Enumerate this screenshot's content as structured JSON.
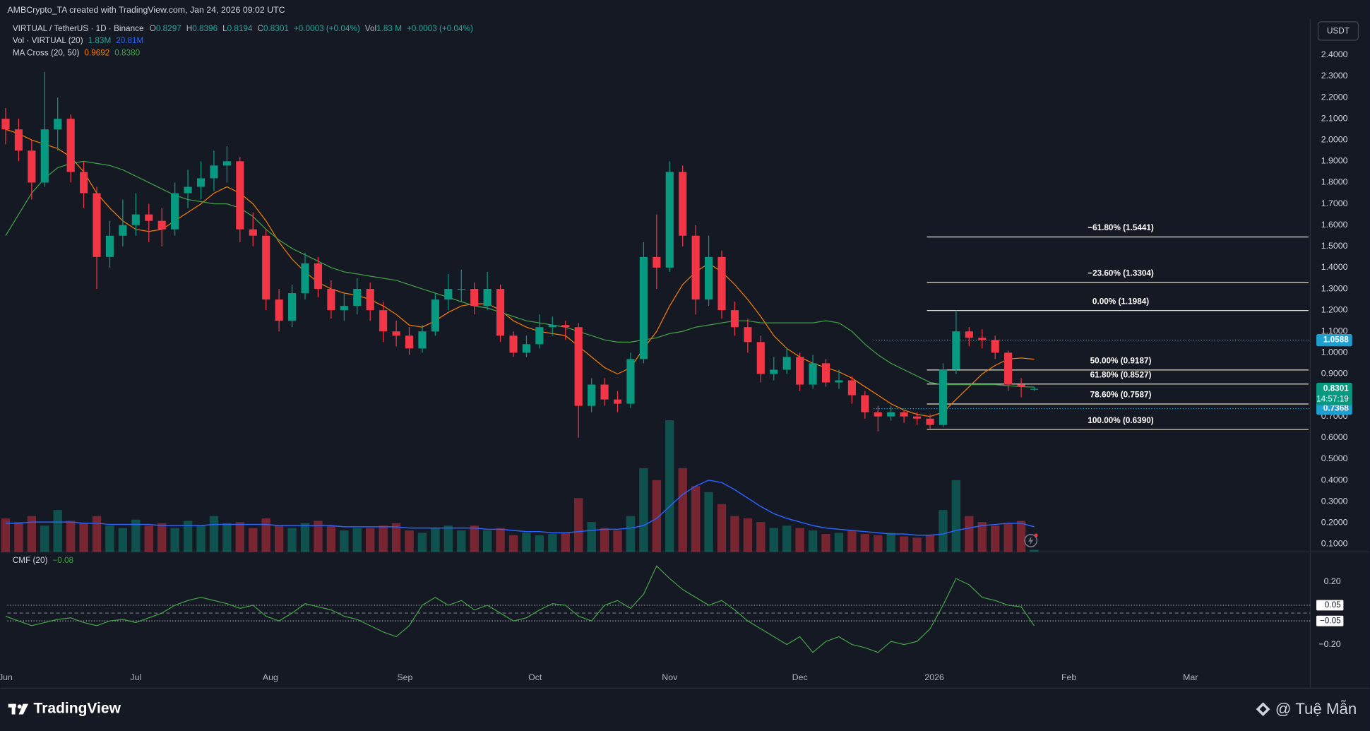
{
  "header": {
    "attribution": "AMBCrypto_TA created with TradingView.com, Jan 24, 2026 09:02 UTC",
    "currency_button": "USDT"
  },
  "legend": {
    "symbol": "VIRTUAL / TetherUS · 1D · Binance",
    "open_label": "O",
    "open": "0.8297",
    "high_label": "H",
    "high": "0.8396",
    "low_label": "L",
    "low": "0.8194",
    "close_label": "C",
    "close": "0.8301",
    "change": "+0.0003 (+0.04%)",
    "vol_label": "Vol",
    "vol": "1.83 M",
    "vol_change": "+0.0003 (+0.04%)",
    "volume_indicator": "Vol · VIRTUAL (20)",
    "volume_value": "1.83M",
    "volume_ma": "20.81M",
    "ma_cross": "MA Cross (20, 50)",
    "ma_fast": "0.9692",
    "ma_slow": "0.8380",
    "cmf": "CMF (20)",
    "cmf_value": "−0.08"
  },
  "chart_data": [
    {
      "type": "candlestick",
      "colors": {
        "up": "#089981",
        "down": "#f23645"
      },
      "grid": false,
      "xlim": [
        0.4,
        300.6
      ],
      "ylim": [
        0.063,
        2.568
      ],
      "xticks": [
        {
          "value": 0,
          "label": "Jun"
        },
        {
          "value": 30,
          "label": "Jul"
        },
        {
          "value": 61,
          "label": "Aug"
        },
        {
          "value": 92,
          "label": "Sep"
        },
        {
          "value": 122,
          "label": "Oct"
        },
        {
          "value": 153,
          "label": "Nov"
        },
        {
          "value": 183,
          "label": "Dec"
        },
        {
          "value": 214,
          "label": "2026"
        },
        {
          "value": 245,
          "label": "Feb"
        },
        {
          "value": 273,
          "label": "Mar"
        }
      ],
      "yticks": [
        {
          "value": 0.1,
          "label": "0.1000"
        },
        {
          "value": 0.2,
          "label": "0.2000"
        },
        {
          "value": 0.3,
          "label": "0.3000"
        },
        {
          "value": 0.4,
          "label": "0.4000"
        },
        {
          "value": 0.5,
          "label": "0.5000"
        },
        {
          "value": 0.6,
          "label": "0.6000"
        },
        {
          "value": 0.7,
          "label": "0.7000"
        },
        {
          "value": 0.8,
          "label": "0.8000"
        },
        {
          "value": 0.9,
          "label": "0.9000"
        },
        {
          "value": 1.0,
          "label": "1.0000"
        },
        {
          "value": 1.1,
          "label": "1.1000"
        },
        {
          "value": 1.2,
          "label": "1.2000"
        },
        {
          "value": 1.3,
          "label": "1.3000"
        },
        {
          "value": 1.4,
          "label": "1.4000"
        },
        {
          "value": 1.5,
          "label": "1.5000"
        },
        {
          "value": 1.6,
          "label": "1.6000"
        },
        {
          "value": 1.7,
          "label": "1.7000"
        },
        {
          "value": 1.8,
          "label": "1.8000"
        },
        {
          "value": 1.9,
          "label": "1.9000"
        },
        {
          "value": 2.0,
          "label": "2.0000"
        },
        {
          "value": 2.1,
          "label": "2.1000"
        },
        {
          "value": 2.2,
          "label": "2.2000"
        },
        {
          "value": 2.3,
          "label": "2.3000"
        },
        {
          "value": 2.4,
          "label": "2.4000"
        }
      ],
      "x": [
        0,
        3,
        6,
        9,
        12,
        15,
        18,
        21,
        24,
        27,
        30,
        33,
        36,
        39,
        42,
        45,
        48,
        51,
        54,
        57,
        60,
        63,
        66,
        69,
        72,
        75,
        78,
        81,
        84,
        87,
        90,
        93,
        96,
        99,
        102,
        105,
        108,
        111,
        114,
        117,
        120,
        123,
        126,
        129,
        132,
        135,
        138,
        141,
        144,
        147,
        150,
        153,
        156,
        159,
        162,
        165,
        168,
        171,
        174,
        177,
        180,
        183,
        186,
        189,
        192,
        195,
        198,
        201,
        204,
        207,
        210,
        213,
        216,
        219,
        222,
        225,
        228,
        231,
        234,
        237
      ],
      "candles": [
        [
          2.1,
          2.15,
          1.98,
          2.05
        ],
        [
          2.05,
          2.1,
          1.9,
          1.95
        ],
        [
          1.95,
          2.0,
          1.72,
          1.8
        ],
        [
          1.8,
          2.32,
          1.78,
          2.05
        ],
        [
          2.05,
          2.2,
          1.95,
          2.1
        ],
        [
          2.1,
          2.12,
          1.8,
          1.85
        ],
        [
          1.85,
          1.9,
          1.68,
          1.75
        ],
        [
          1.75,
          1.78,
          1.3,
          1.45
        ],
        [
          1.45,
          1.62,
          1.4,
          1.55
        ],
        [
          1.55,
          1.72,
          1.5,
          1.6
        ],
        [
          1.6,
          1.75,
          1.55,
          1.65
        ],
        [
          1.65,
          1.7,
          1.52,
          1.62
        ],
        [
          1.62,
          1.68,
          1.5,
          1.58
        ],
        [
          1.58,
          1.8,
          1.55,
          1.75
        ],
        [
          1.75,
          1.86,
          1.68,
          1.78
        ],
        [
          1.78,
          1.9,
          1.72,
          1.82
        ],
        [
          1.82,
          1.95,
          1.76,
          1.88
        ],
        [
          1.88,
          1.97,
          1.8,
          1.9
        ],
        [
          1.9,
          1.92,
          1.52,
          1.58
        ],
        [
          1.58,
          1.66,
          1.5,
          1.55
        ],
        [
          1.55,
          1.58,
          1.2,
          1.25
        ],
        [
          1.25,
          1.3,
          1.1,
          1.15
        ],
        [
          1.15,
          1.32,
          1.12,
          1.28
        ],
        [
          1.28,
          1.47,
          1.25,
          1.42
        ],
        [
          1.42,
          1.45,
          1.26,
          1.3
        ],
        [
          1.3,
          1.34,
          1.16,
          1.2
        ],
        [
          1.2,
          1.28,
          1.15,
          1.22
        ],
        [
          1.22,
          1.35,
          1.18,
          1.3
        ],
        [
          1.3,
          1.33,
          1.15,
          1.2
        ],
        [
          1.2,
          1.24,
          1.05,
          1.1
        ],
        [
          1.1,
          1.15,
          1.03,
          1.08
        ],
        [
          1.08,
          1.12,
          0.99,
          1.02
        ],
        [
          1.02,
          1.13,
          1.0,
          1.1
        ],
        [
          1.1,
          1.28,
          1.08,
          1.25
        ],
        [
          1.25,
          1.37,
          1.2,
          1.3
        ],
        [
          1.3,
          1.39,
          1.24,
          1.3
        ],
        [
          1.3,
          1.33,
          1.18,
          1.22
        ],
        [
          1.22,
          1.38,
          1.2,
          1.3
        ],
        [
          1.3,
          1.32,
          1.05,
          1.08
        ],
        [
          1.08,
          1.1,
          0.98,
          1.0
        ],
        [
          1.0,
          1.08,
          0.98,
          1.04
        ],
        [
          1.04,
          1.18,
          1.02,
          1.12
        ],
        [
          1.12,
          1.17,
          1.08,
          1.13
        ],
        [
          1.13,
          1.15,
          1.06,
          1.12
        ],
        [
          1.12,
          1.14,
          0.6,
          0.75
        ],
        [
          0.75,
          0.88,
          0.72,
          0.85
        ],
        [
          0.85,
          0.88,
          0.75,
          0.78
        ],
        [
          0.78,
          0.82,
          0.72,
          0.76
        ],
        [
          0.76,
          1.0,
          0.74,
          0.97
        ],
        [
          0.97,
          1.52,
          0.95,
          1.45
        ],
        [
          1.45,
          1.65,
          1.3,
          1.4
        ],
        [
          1.4,
          1.9,
          1.38,
          1.85
        ],
        [
          1.85,
          1.88,
          1.5,
          1.55
        ],
        [
          1.55,
          1.6,
          1.18,
          1.25
        ],
        [
          1.25,
          1.55,
          1.22,
          1.45
        ],
        [
          1.45,
          1.48,
          1.16,
          1.2
        ],
        [
          1.2,
          1.24,
          1.08,
          1.12
        ],
        [
          1.12,
          1.16,
          1.0,
          1.05
        ],
        [
          1.05,
          1.08,
          0.86,
          0.9
        ],
        [
          0.9,
          0.98,
          0.87,
          0.92
        ],
        [
          0.92,
          1.02,
          0.9,
          0.98
        ],
        [
          0.98,
          1.0,
          0.82,
          0.85
        ],
        [
          0.85,
          0.99,
          0.83,
          0.95
        ],
        [
          0.95,
          0.97,
          0.84,
          0.86
        ],
        [
          0.86,
          0.92,
          0.83,
          0.87
        ],
        [
          0.87,
          0.89,
          0.76,
          0.8
        ],
        [
          0.8,
          0.82,
          0.69,
          0.72
        ],
        [
          0.72,
          0.75,
          0.63,
          0.7
        ],
        [
          0.7,
          0.75,
          0.68,
          0.72
        ],
        [
          0.72,
          0.73,
          0.67,
          0.7
        ],
        [
          0.7,
          0.72,
          0.66,
          0.69
        ],
        [
          0.69,
          0.71,
          0.639,
          0.66
        ],
        [
          0.66,
          0.95,
          0.65,
          0.92
        ],
        [
          0.92,
          1.1984,
          0.9,
          1.1
        ],
        [
          1.1,
          1.12,
          1.03,
          1.07
        ],
        [
          1.07,
          1.11,
          1.02,
          1.06
        ],
        [
          1.06,
          1.08,
          0.97,
          1.0
        ],
        [
          1.0,
          1.01,
          0.82,
          0.85
        ],
        [
          0.85,
          0.88,
          0.79,
          0.84
        ],
        [
          0.8297,
          0.8396,
          0.8194,
          0.8301
        ]
      ],
      "series": [
        {
          "color": "#f57c00",
          "values": [
            2.05,
            2.03,
            2.0,
            1.98,
            1.96,
            1.92,
            1.85,
            1.75,
            1.68,
            1.62,
            1.58,
            1.57,
            1.58,
            1.62,
            1.66,
            1.7,
            1.75,
            1.78,
            1.75,
            1.7,
            1.62,
            1.52,
            1.44,
            1.38,
            1.33,
            1.3,
            1.28,
            1.27,
            1.25,
            1.22,
            1.18,
            1.13,
            1.12,
            1.15,
            1.19,
            1.22,
            1.23,
            1.23,
            1.2,
            1.15,
            1.12,
            1.1,
            1.09,
            1.08,
            1.03,
            0.98,
            0.93,
            0.9,
            0.93,
            1.02,
            1.1,
            1.22,
            1.32,
            1.38,
            1.42,
            1.38,
            1.32,
            1.25,
            1.17,
            1.08,
            1.02,
            0.98,
            0.95,
            0.93,
            0.91,
            0.88,
            0.84,
            0.8,
            0.76,
            0.73,
            0.71,
            0.7,
            0.72,
            0.78,
            0.84,
            0.9,
            0.94,
            0.97,
            0.975,
            0.9692
          ]
        },
        {
          "color": "#43a047",
          "values": [
            1.55,
            1.65,
            1.75,
            1.82,
            1.87,
            1.89,
            1.9,
            1.89,
            1.88,
            1.86,
            1.83,
            1.8,
            1.77,
            1.74,
            1.72,
            1.71,
            1.7,
            1.7,
            1.68,
            1.64,
            1.58,
            1.53,
            1.49,
            1.46,
            1.43,
            1.4,
            1.38,
            1.37,
            1.36,
            1.35,
            1.34,
            1.32,
            1.3,
            1.28,
            1.26,
            1.24,
            1.22,
            1.21,
            1.19,
            1.17,
            1.15,
            1.14,
            1.13,
            1.12,
            1.1,
            1.08,
            1.06,
            1.05,
            1.05,
            1.06,
            1.07,
            1.09,
            1.1,
            1.12,
            1.13,
            1.14,
            1.15,
            1.15,
            1.14,
            1.14,
            1.14,
            1.14,
            1.14,
            1.15,
            1.14,
            1.1,
            1.04,
            0.99,
            0.95,
            0.92,
            0.89,
            0.86,
            0.85,
            0.85,
            0.85,
            0.85,
            0.85,
            0.845,
            0.84,
            0.838
          ]
        }
      ],
      "volume": {
        "ylim": [
          0,
          445
        ],
        "values": [
          28,
          25,
          30,
          22,
          35,
          26,
          24,
          30,
          22,
          20,
          27,
          22,
          24,
          20,
          26,
          22,
          30,
          24,
          25,
          20,
          28,
          22,
          20,
          24,
          26,
          22,
          18,
          20,
          20,
          22,
          24,
          18,
          16,
          20,
          22,
          18,
          22,
          18,
          20,
          14,
          16,
          14,
          15,
          16,
          45,
          25,
          20,
          18,
          30,
          70,
          60,
          110,
          70,
          55,
          50,
          40,
          30,
          28,
          25,
          20,
          22,
          20,
          18,
          15,
          16,
          18,
          15,
          14,
          16,
          13,
          12,
          14,
          35,
          60,
          30,
          25,
          22,
          24,
          26,
          1.83
        ],
        "ma": {
          "color": "#2962ff",
          "values": [
            24,
            24,
            25,
            25,
            25,
            25,
            24,
            24,
            23,
            23,
            23,
            23,
            22,
            22,
            22,
            22,
            23,
            23,
            23,
            23,
            23,
            22,
            22,
            22,
            22,
            22,
            21,
            21,
            21,
            21,
            21,
            20,
            20,
            20,
            20,
            20,
            20,
            19,
            19,
            18,
            17,
            17,
            16,
            16,
            17,
            18,
            19,
            19,
            20,
            22,
            28,
            38,
            48,
            55,
            60,
            58,
            52,
            45,
            38,
            32,
            28,
            25,
            22,
            20,
            19,
            18,
            17,
            16,
            15,
            15,
            14,
            14,
            15,
            18,
            20,
            22,
            23,
            24,
            24,
            21
          ]
        }
      },
      "fib_levels": [
        {
          "value": 1.5441,
          "label": "−61.80% (1.5441)"
        },
        {
          "value": 1.3304,
          "label": "−23.60% (1.3304)"
        },
        {
          "value": 1.1984,
          "label": "0.00% (1.1984)"
        },
        {
          "value": 0.9187,
          "label": "50.00% (0.9187)"
        },
        {
          "value": 0.8527,
          "label": "61.80% (0.8527)"
        },
        {
          "value": 0.7587,
          "label": "78.60% (0.7587)"
        },
        {
          "value": 0.639,
          "label": "100.00% (0.6390)"
        }
      ],
      "fib_color": "#e6e2bd",
      "price_labels": [
        {
          "value": 1.0588,
          "color": "#1e9fd0"
        },
        {
          "value": 0.7368,
          "color": "#1e9fd0"
        },
        {
          "value": 0.8301,
          "color": "#089981",
          "countdown": "14:57:19"
        }
      ]
    },
    {
      "type": "line",
      "color": "#43a047",
      "ylim": [
        -0.478,
        0.389
      ],
      "yticks": [
        {
          "value": 0.2,
          "label": "0.20"
        },
        {
          "value": -0.2,
          "label": "−0.20"
        }
      ],
      "bands": [
        {
          "value": 0.05,
          "label": "0.05"
        },
        {
          "value": -0.05,
          "label": "−0.05"
        }
      ],
      "zero_line": true,
      "values": [
        -0.02,
        -0.05,
        -0.08,
        -0.06,
        -0.04,
        -0.03,
        -0.06,
        -0.08,
        -0.05,
        -0.04,
        -0.06,
        -0.03,
        0.0,
        0.05,
        0.08,
        0.1,
        0.08,
        0.06,
        0.03,
        0.05,
        -0.02,
        -0.05,
        0.0,
        0.06,
        0.04,
        0.02,
        -0.02,
        -0.04,
        -0.08,
        -0.12,
        -0.15,
        -0.08,
        0.05,
        0.1,
        0.05,
        0.08,
        0.02,
        0.05,
        0.0,
        -0.05,
        -0.03,
        0.02,
        0.06,
        0.05,
        -0.02,
        -0.05,
        0.05,
        0.08,
        0.03,
        0.12,
        0.3,
        0.22,
        0.15,
        0.1,
        0.05,
        0.08,
        0.02,
        -0.05,
        -0.1,
        -0.15,
        -0.2,
        -0.15,
        -0.25,
        -0.18,
        -0.15,
        -0.2,
        -0.22,
        -0.25,
        -0.18,
        -0.2,
        -0.18,
        -0.1,
        0.05,
        0.22,
        0.18,
        0.1,
        0.08,
        0.05,
        0.04,
        -0.08
      ]
    }
  ],
  "footer": {
    "logo": "TradingView",
    "watermark": "@ Tuệ Mẫn"
  }
}
